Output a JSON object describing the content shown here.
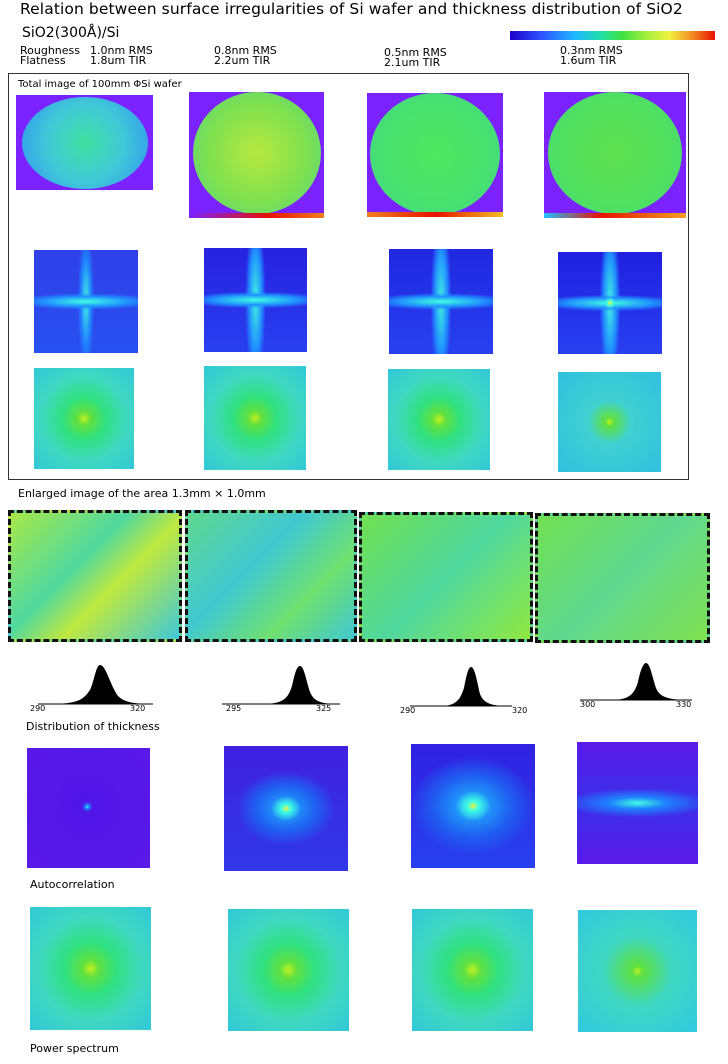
{
  "header": {
    "title": "Relation between surface  irregularities  of Si wafer and thickness distribution of SiO2",
    "subtitle": "SiO2(300Å)/Si"
  },
  "specs": {
    "roughness_label": "Roughness",
    "flatness_label": "Flatness",
    "samples": [
      {
        "roughness": "1.0nm RMS",
        "flatness": "1.8um  TIR"
      },
      {
        "roughness": "0.8nm RMS",
        "flatness": "2.2um  TIR"
      },
      {
        "roughness": "0.5nm RMS",
        "flatness": "2.1um  TIR"
      },
      {
        "roughness": "0.3nm RMS",
        "flatness": "1.6um  TIR"
      }
    ]
  },
  "colorbar": {
    "from": "#1b00c8",
    "to": "#e81000"
  },
  "sections": {
    "total_image": "Total image of 100mm   ΦSi wafer",
    "enlarged": "Enlarged image of the area   1.3mm × 1.0mm",
    "distribution": "Distribution of thickness",
    "autocorrelation": "Autocorrelation",
    "power_spectrum": "Power spectrum"
  },
  "histograms": [
    {
      "min": "290",
      "max": "320"
    },
    {
      "min": "295",
      "max": "325"
    },
    {
      "min": "290",
      "max": "320"
    },
    {
      "min": "300",
      "max": "330"
    }
  ]
}
